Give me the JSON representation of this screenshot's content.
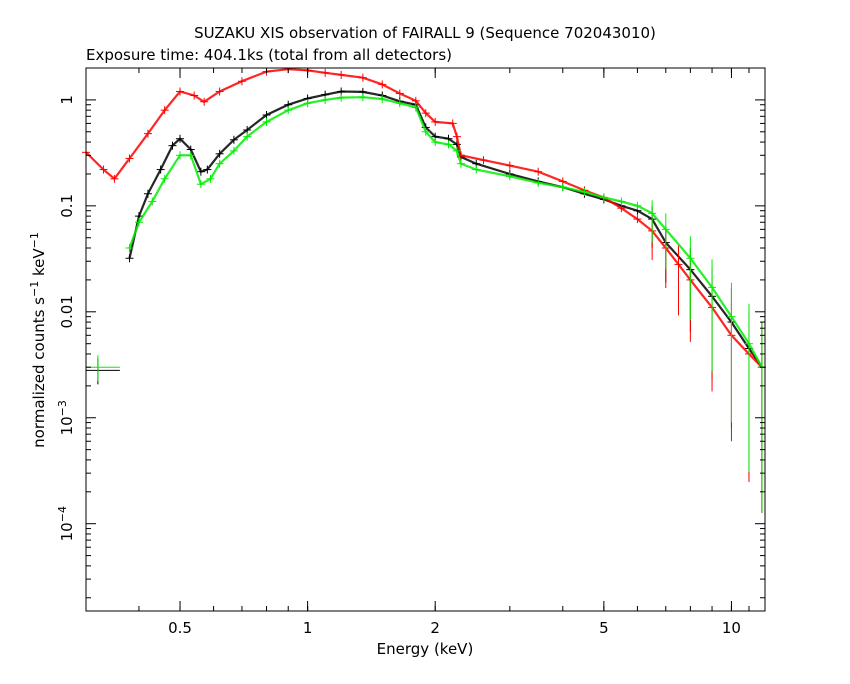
{
  "chart_data": {
    "type": "scatter",
    "title": "SUZAKU XIS observation of FAIRALL 9 (Sequence 702043010)",
    "subtitle": "Exposure time: 404.1ks (total from all detectors)",
    "xlabel": "Energy (keV)",
    "ylabel": {
      "text": "normalized counts s",
      "sup1": "−1",
      "mid": " keV",
      "sup2": "−1"
    },
    "x_scale": "log",
    "y_scale": "log",
    "xlim": [
      0.3,
      12
    ],
    "ylim": [
      1.5e-05,
      2.0
    ],
    "x_ticks": [
      {
        "value": 0.5,
        "label": "0.5"
      },
      {
        "value": 1,
        "label": "1"
      },
      {
        "value": 2,
        "label": "2"
      },
      {
        "value": 5,
        "label": "5"
      },
      {
        "value": 10,
        "label": "10"
      }
    ],
    "y_ticks": [
      {
        "value": 1,
        "label": "1"
      },
      {
        "value": 0.1,
        "label": "0.1"
      },
      {
        "value": 0.01,
        "label": "0.01"
      },
      {
        "value": 0.001,
        "label": "10",
        "exp": "−3"
      },
      {
        "value": 0.0001,
        "label": "10",
        "exp": "−4"
      }
    ],
    "grid": false,
    "legend": "none",
    "series": [
      {
        "color": "#000000",
        "x": [
          0.38,
          0.4,
          0.42,
          0.45,
          0.48,
          0.5,
          0.53,
          0.56,
          0.58,
          0.62,
          0.67,
          0.72,
          0.8,
          0.9,
          1.0,
          1.1,
          1.2,
          1.35,
          1.5,
          1.65,
          1.8,
          1.9,
          2.0,
          2.15,
          2.25,
          2.3,
          2.5,
          3.0,
          3.5,
          4.0,
          4.5,
          5.0,
          5.5,
          6.0,
          6.5,
          7.0,
          8.0,
          9.0,
          10.0,
          11.0,
          11.8
        ],
        "y": [
          0.032,
          0.08,
          0.13,
          0.22,
          0.37,
          0.43,
          0.34,
          0.21,
          0.22,
          0.31,
          0.42,
          0.52,
          0.72,
          0.9,
          1.03,
          1.12,
          1.2,
          1.19,
          1.1,
          0.97,
          0.9,
          0.55,
          0.45,
          0.43,
          0.38,
          0.29,
          0.25,
          0.2,
          0.17,
          0.15,
          0.13,
          0.115,
          0.1,
          0.09,
          0.075,
          0.045,
          0.025,
          0.014,
          0.008,
          0.0045,
          0.003
        ]
      },
      {
        "color": "#ff0000",
        "x": [
          0.3,
          0.33,
          0.35,
          0.38,
          0.42,
          0.46,
          0.5,
          0.54,
          0.57,
          0.62,
          0.7,
          0.8,
          0.9,
          1.0,
          1.1,
          1.2,
          1.35,
          1.5,
          1.65,
          1.8,
          1.9,
          2.0,
          2.2,
          2.25,
          2.3,
          2.6,
          3.0,
          3.5,
          4.0,
          4.5,
          5.0,
          5.5,
          6.0,
          6.5,
          7.0,
          7.5,
          8.0,
          9.0,
          10.0,
          11.0,
          11.8
        ],
        "y": [
          0.32,
          0.22,
          0.18,
          0.28,
          0.48,
          0.8,
          1.2,
          1.1,
          0.96,
          1.2,
          1.5,
          1.85,
          1.95,
          1.9,
          1.8,
          1.72,
          1.62,
          1.4,
          1.15,
          0.98,
          0.75,
          0.62,
          0.6,
          0.45,
          0.3,
          0.27,
          0.24,
          0.21,
          0.17,
          0.14,
          0.12,
          0.095,
          0.075,
          0.058,
          0.04,
          0.028,
          0.02,
          0.011,
          0.006,
          0.004,
          0.003
        ]
      },
      {
        "color": "#00ee00",
        "x": [
          0.38,
          0.4,
          0.43,
          0.46,
          0.5,
          0.53,
          0.56,
          0.59,
          0.62,
          0.67,
          0.72,
          0.8,
          0.9,
          1.0,
          1.1,
          1.2,
          1.35,
          1.5,
          1.65,
          1.8,
          1.9,
          2.0,
          2.15,
          2.25,
          2.3,
          2.5,
          3.0,
          3.5,
          4.0,
          4.5,
          5.0,
          5.5,
          6.0,
          6.5,
          7.0,
          8.0,
          9.0,
          10.0,
          11.0,
          11.8
        ],
        "y": [
          0.04,
          0.07,
          0.11,
          0.18,
          0.3,
          0.3,
          0.16,
          0.18,
          0.25,
          0.33,
          0.45,
          0.62,
          0.8,
          0.93,
          1.0,
          1.05,
          1.06,
          1.02,
          0.93,
          0.85,
          0.5,
          0.4,
          0.38,
          0.33,
          0.25,
          0.22,
          0.19,
          0.165,
          0.15,
          0.135,
          0.12,
          0.11,
          0.1,
          0.085,
          0.06,
          0.032,
          0.017,
          0.009,
          0.005,
          0.003
        ]
      }
    ],
    "annotations": [
      {
        "type": "crosshair",
        "color": "#000000",
        "x": 0.32,
        "y": 0.0028
      },
      {
        "type": "crosshair",
        "color": "#00ee00",
        "x": 0.32,
        "y": 0.003
      }
    ]
  }
}
